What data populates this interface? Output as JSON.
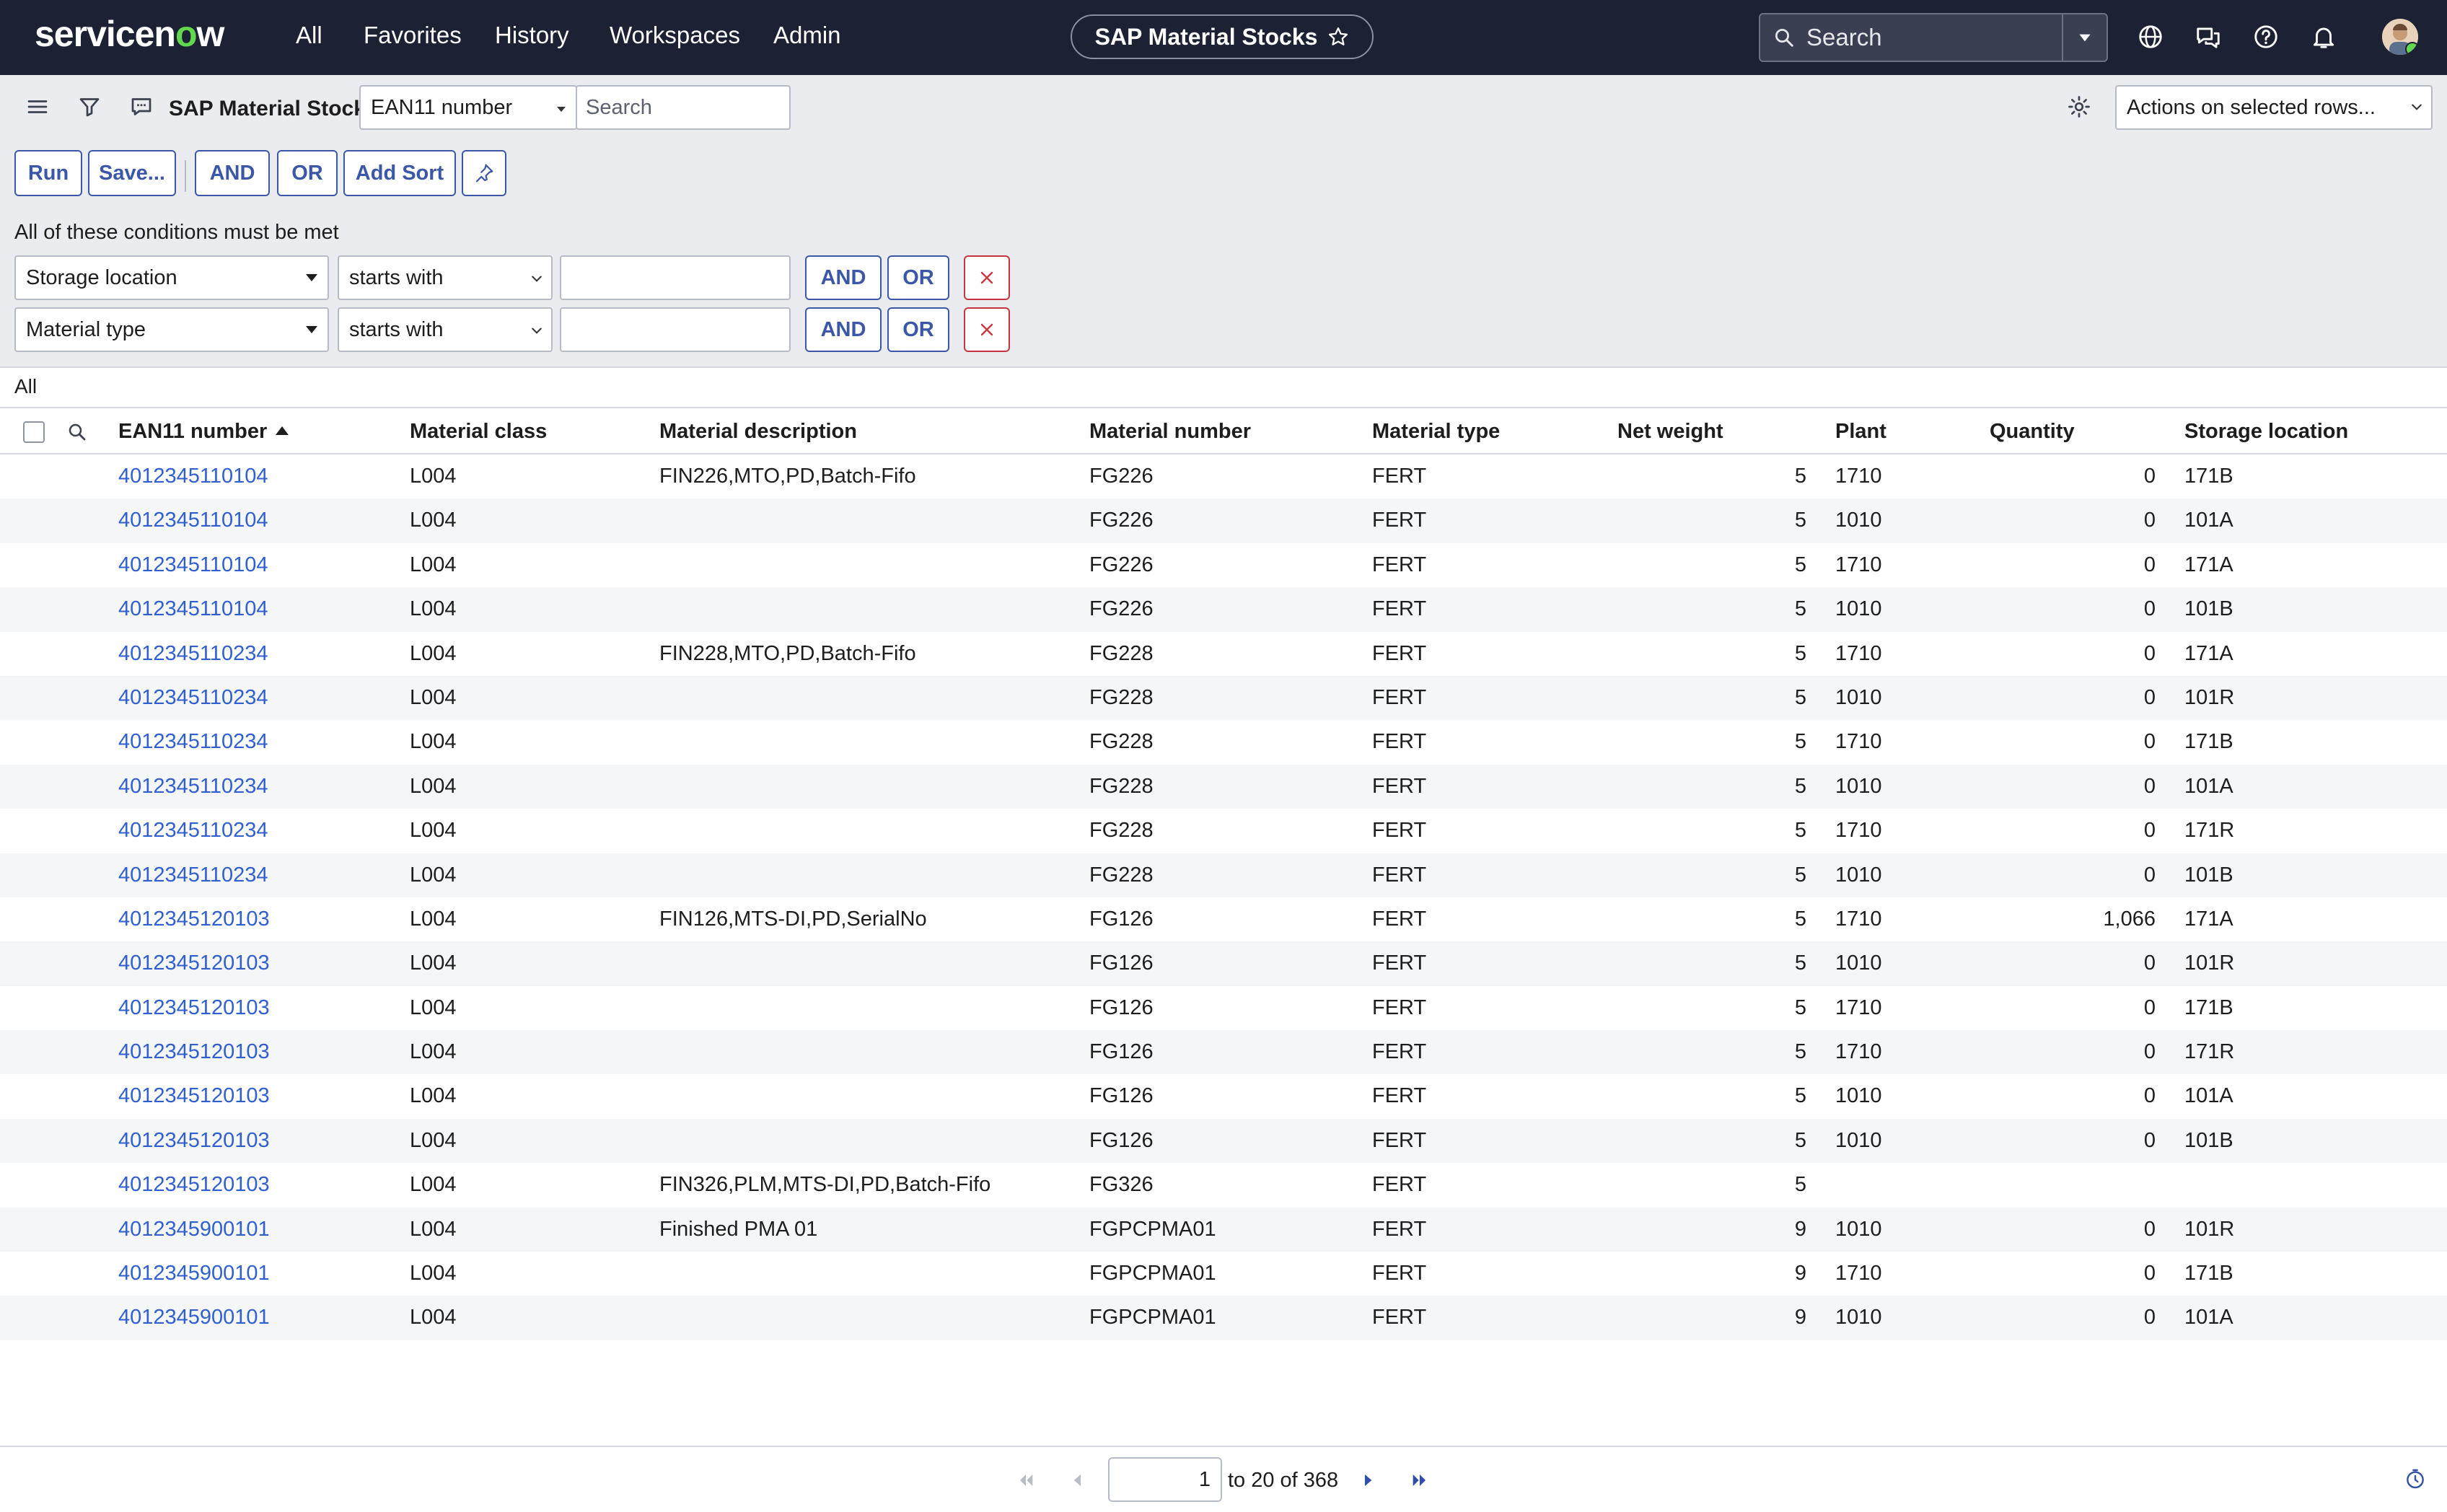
{
  "nav": {
    "brand_before": "servicen",
    "brand_o": "o",
    "brand_after": "w",
    "links": [
      "All",
      "Favorites",
      "History",
      "Workspaces",
      "Admin"
    ],
    "context_title": "SAP Material Stocks",
    "search_placeholder": "Search",
    "icons": [
      "globe-icon",
      "chat-icon",
      "help-icon",
      "bell-icon"
    ]
  },
  "listbar": {
    "title": "SAP Material Stocks",
    "field_select": "EAN11 number",
    "search_placeholder": "Search",
    "actions_select": "Actions on selected rows..."
  },
  "filter": {
    "buttons": {
      "run": "Run",
      "save": "Save...",
      "and": "AND",
      "or": "OR",
      "add_sort": "Add Sort"
    },
    "conditions_label": "All of these conditions must be met",
    "conditions": [
      {
        "field": "Storage location",
        "operator": "starts with",
        "value": "",
        "and": "AND",
        "or": "OR"
      },
      {
        "field": "Material type",
        "operator": "starts with",
        "value": "",
        "and": "AND",
        "or": "OR"
      }
    ]
  },
  "breadcrumb": "All",
  "table": {
    "columns": [
      "EAN11 number",
      "Material class",
      "Material description",
      "Material number",
      "Material type",
      "Net weight",
      "Plant",
      "Quantity",
      "Storage location"
    ],
    "rows": [
      [
        "4012345110104",
        "L004",
        "FIN226,MTO,PD,Batch-Fifo",
        "FG226",
        "FERT",
        "5",
        "1710",
        "0",
        "171B"
      ],
      [
        "4012345110104",
        "L004",
        "",
        "FG226",
        "FERT",
        "5",
        "1010",
        "0",
        "101A"
      ],
      [
        "4012345110104",
        "L004",
        "",
        "FG226",
        "FERT",
        "5",
        "1710",
        "0",
        "171A"
      ],
      [
        "4012345110104",
        "L004",
        "",
        "FG226",
        "FERT",
        "5",
        "1010",
        "0",
        "101B"
      ],
      [
        "4012345110234",
        "L004",
        "FIN228,MTO,PD,Batch-Fifo",
        "FG228",
        "FERT",
        "5",
        "1710",
        "0",
        "171A"
      ],
      [
        "4012345110234",
        "L004",
        "",
        "FG228",
        "FERT",
        "5",
        "1010",
        "0",
        "101R"
      ],
      [
        "4012345110234",
        "L004",
        "",
        "FG228",
        "FERT",
        "5",
        "1710",
        "0",
        "171B"
      ],
      [
        "4012345110234",
        "L004",
        "",
        "FG228",
        "FERT",
        "5",
        "1010",
        "0",
        "101A"
      ],
      [
        "4012345110234",
        "L004",
        "",
        "FG228",
        "FERT",
        "5",
        "1710",
        "0",
        "171R"
      ],
      [
        "4012345110234",
        "L004",
        "",
        "FG228",
        "FERT",
        "5",
        "1010",
        "0",
        "101B"
      ],
      [
        "4012345120103",
        "L004",
        "FIN126,MTS-DI,PD,SerialNo",
        "FG126",
        "FERT",
        "5",
        "1710",
        "1,066",
        "171A"
      ],
      [
        "4012345120103",
        "L004",
        "",
        "FG126",
        "FERT",
        "5",
        "1010",
        "0",
        "101R"
      ],
      [
        "4012345120103",
        "L004",
        "",
        "FG126",
        "FERT",
        "5",
        "1710",
        "0",
        "171B"
      ],
      [
        "4012345120103",
        "L004",
        "",
        "FG126",
        "FERT",
        "5",
        "1710",
        "0",
        "171R"
      ],
      [
        "4012345120103",
        "L004",
        "",
        "FG126",
        "FERT",
        "5",
        "1010",
        "0",
        "101A"
      ],
      [
        "4012345120103",
        "L004",
        "",
        "FG126",
        "FERT",
        "5",
        "1010",
        "0",
        "101B"
      ],
      [
        "4012345120103",
        "L004",
        "FIN326,PLM,MTS-DI,PD,Batch-Fifo",
        "FG326",
        "FERT",
        "5",
        "",
        "",
        ""
      ],
      [
        "4012345900101",
        "L004",
        "Finished PMA 01",
        "FGPCPMA01",
        "FERT",
        "9",
        "1010",
        "0",
        "101R"
      ],
      [
        "4012345900101",
        "L004",
        "",
        "FGPCPMA01",
        "FERT",
        "9",
        "1710",
        "0",
        "171B"
      ],
      [
        "4012345900101",
        "L004",
        "",
        "FGPCPMA01",
        "FERT",
        "9",
        "1010",
        "0",
        "101A"
      ]
    ]
  },
  "pagination": {
    "current": "1",
    "range_text": "to 20 of 368"
  },
  "colors": {
    "nav_bg": "#1c2133",
    "brand_green": "#62d84e",
    "link": "#2f5fd0",
    "button_blue": "#3a57a8",
    "remove_red": "#c8363d"
  }
}
